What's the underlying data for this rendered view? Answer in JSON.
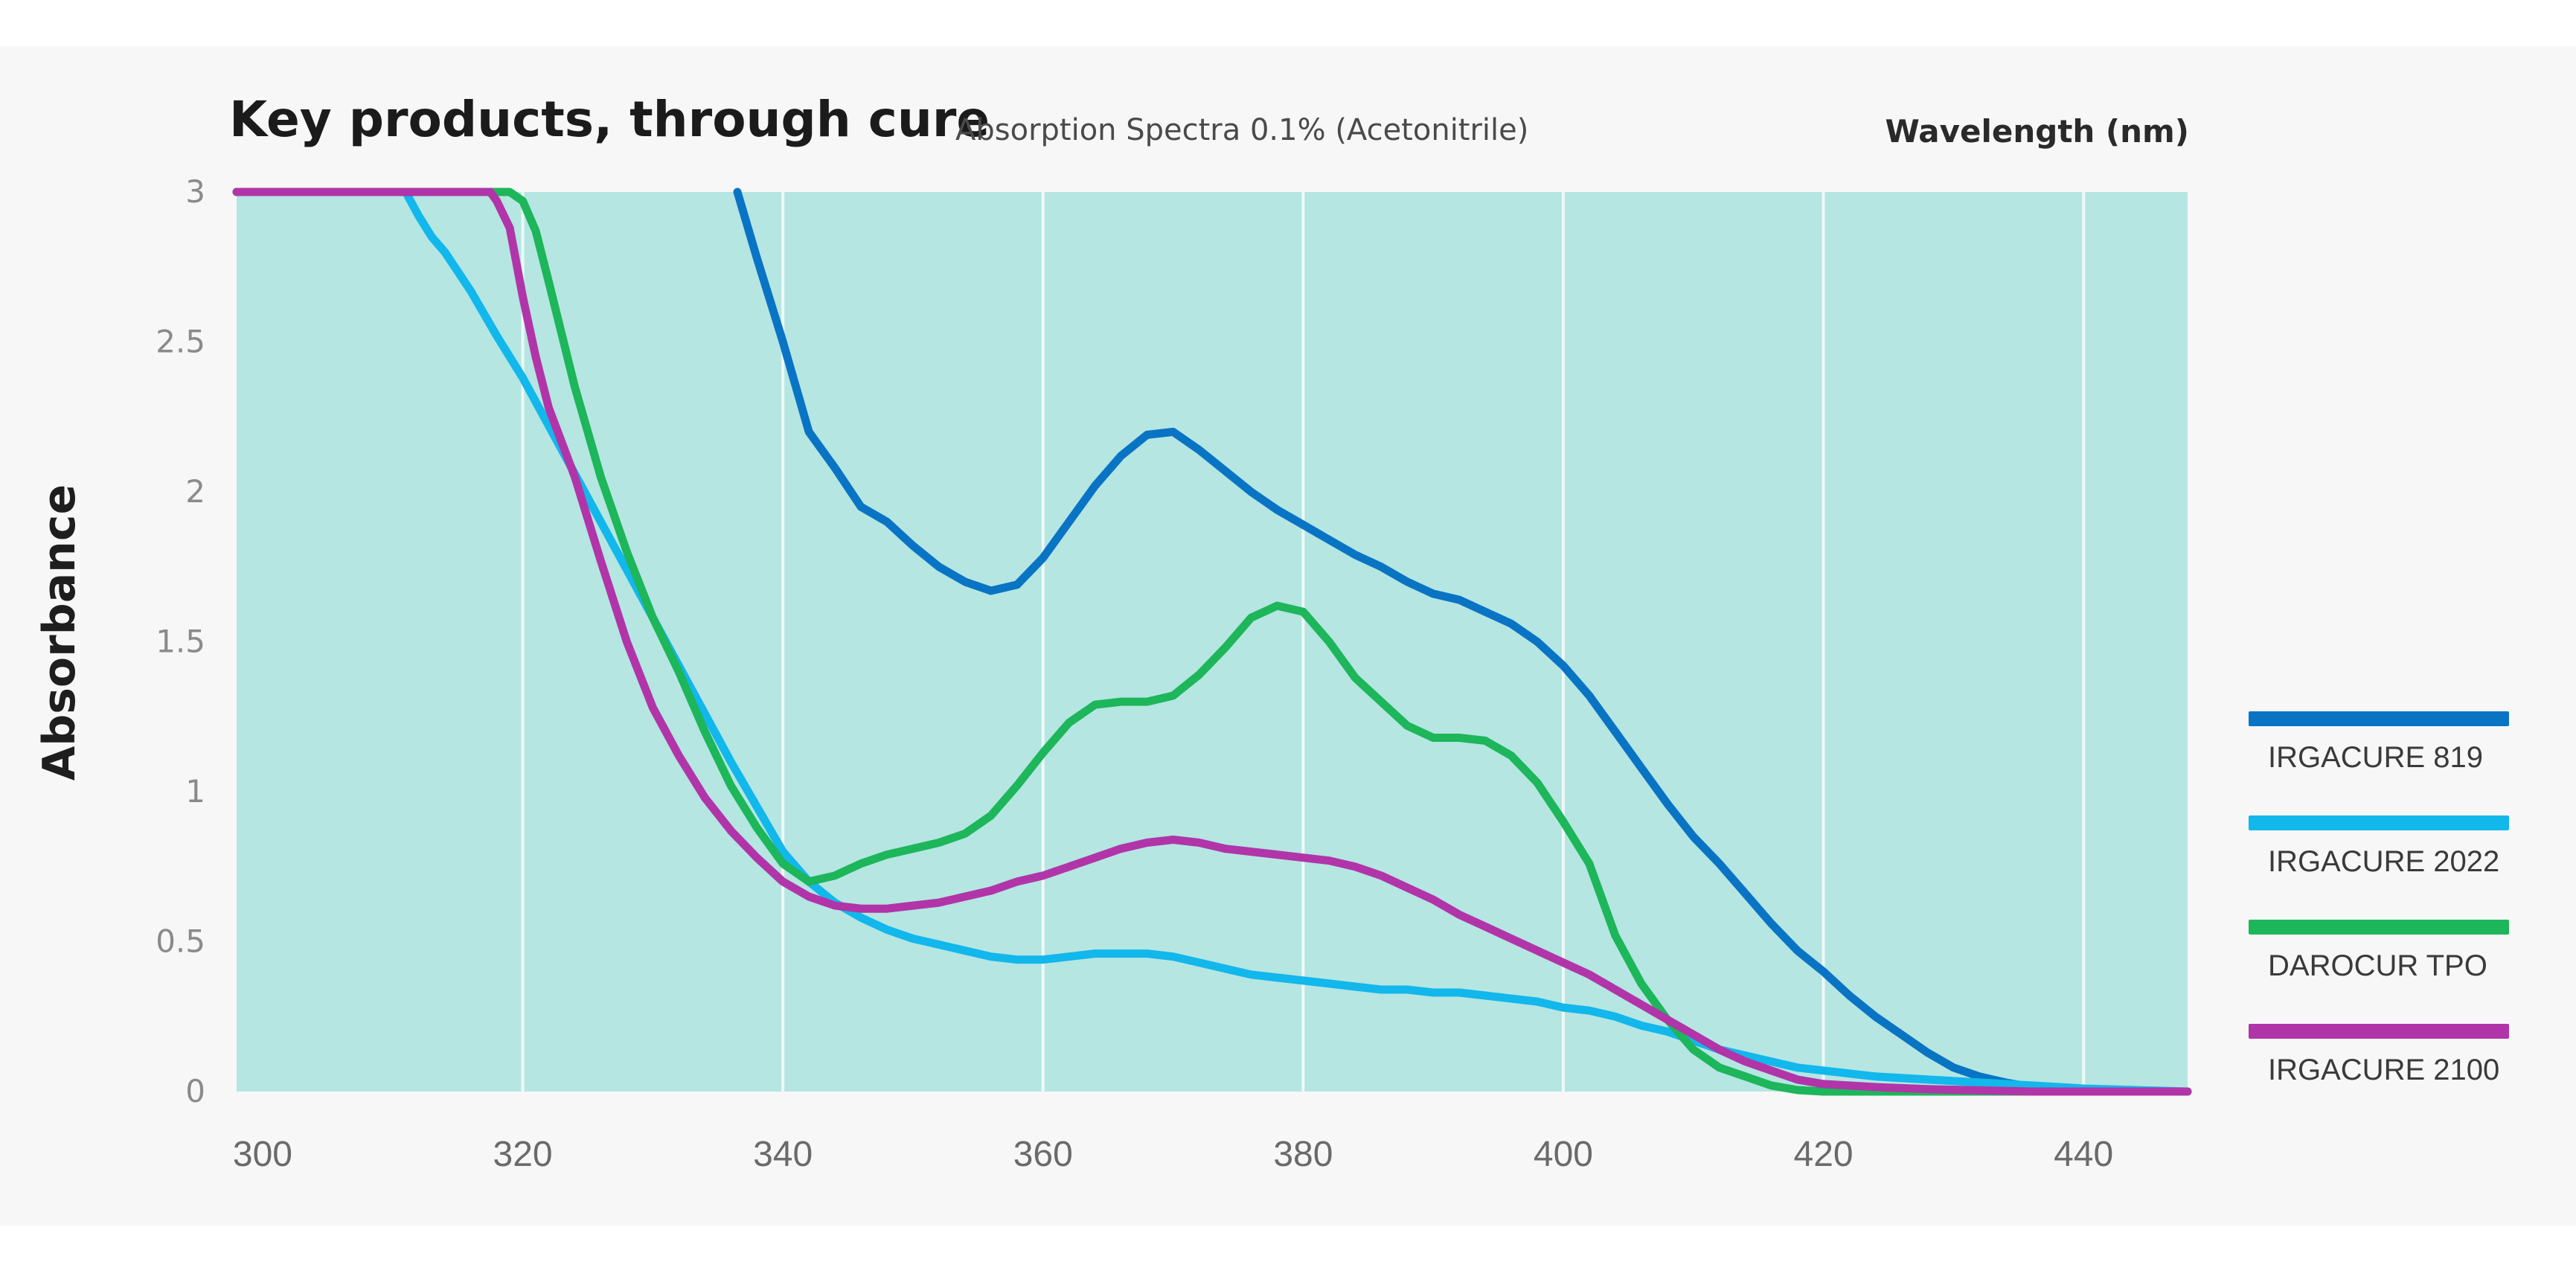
{
  "chart_data": {
    "type": "line",
    "title": "Key products, through cure",
    "subtitle": "Absorption Spectra 0.1% (Acetonitrile)",
    "xlabel": "Wavelength (nm)",
    "ylabel": "Absorbance",
    "xlim": [
      298,
      448
    ],
    "ylim": [
      0,
      3
    ],
    "x_ticks": [
      "300",
      "320",
      "340",
      "360",
      "380",
      "400",
      "420",
      "440"
    ],
    "x_tick_values": [
      300,
      320,
      340,
      360,
      380,
      400,
      420,
      440
    ],
    "y_ticks": [
      "0",
      "0.5",
      "1",
      "1.5",
      "2",
      "2.5",
      "3"
    ],
    "y_tick_values": [
      0,
      0.5,
      1,
      1.5,
      2,
      2.5,
      3
    ],
    "grid": "vertical",
    "background": "#b5e6e2",
    "legend_position": "right",
    "series": [
      {
        "name": "IRGACURE 819",
        "color": "#0a74c4",
        "points": [
          [
            336.5,
            3.0
          ],
          [
            338,
            2.78
          ],
          [
            340,
            2.5
          ],
          [
            342,
            2.2
          ],
          [
            344,
            2.08
          ],
          [
            346,
            1.95
          ],
          [
            348,
            1.9
          ],
          [
            350,
            1.82
          ],
          [
            352,
            1.75
          ],
          [
            354,
            1.7
          ],
          [
            356,
            1.67
          ],
          [
            358,
            1.69
          ],
          [
            360,
            1.78
          ],
          [
            362,
            1.9
          ],
          [
            364,
            2.02
          ],
          [
            366,
            2.12
          ],
          [
            368,
            2.19
          ],
          [
            370,
            2.2
          ],
          [
            372,
            2.14
          ],
          [
            374,
            2.07
          ],
          [
            376,
            2.0
          ],
          [
            378,
            1.94
          ],
          [
            380,
            1.89
          ],
          [
            382,
            1.84
          ],
          [
            384,
            1.79
          ],
          [
            386,
            1.75
          ],
          [
            388,
            1.7
          ],
          [
            390,
            1.66
          ],
          [
            392,
            1.64
          ],
          [
            394,
            1.6
          ],
          [
            396,
            1.56
          ],
          [
            398,
            1.5
          ],
          [
            400,
            1.42
          ],
          [
            402,
            1.32
          ],
          [
            404,
            1.2
          ],
          [
            406,
            1.08
          ],
          [
            408,
            0.96
          ],
          [
            410,
            0.85
          ],
          [
            412,
            0.76
          ],
          [
            414,
            0.66
          ],
          [
            416,
            0.56
          ],
          [
            418,
            0.47
          ],
          [
            420,
            0.4
          ],
          [
            422,
            0.32
          ],
          [
            424,
            0.25
          ],
          [
            426,
            0.19
          ],
          [
            428,
            0.13
          ],
          [
            430,
            0.08
          ],
          [
            432,
            0.05
          ],
          [
            434,
            0.03
          ],
          [
            436,
            0.015
          ],
          [
            438,
            0.005
          ],
          [
            440,
            0.0
          ],
          [
            448,
            0.0
          ]
        ]
      },
      {
        "name": "IRGACURE 2022",
        "color": "#12b7ec",
        "points": [
          [
            298,
            3.0
          ],
          [
            311,
            3.0
          ],
          [
            312,
            2.92
          ],
          [
            313,
            2.85
          ],
          [
            314,
            2.8
          ],
          [
            316,
            2.67
          ],
          [
            318,
            2.52
          ],
          [
            320,
            2.38
          ],
          [
            322,
            2.22
          ],
          [
            324,
            2.06
          ],
          [
            326,
            1.9
          ],
          [
            328,
            1.74
          ],
          [
            330,
            1.58
          ],
          [
            332,
            1.42
          ],
          [
            334,
            1.26
          ],
          [
            336,
            1.1
          ],
          [
            338,
            0.95
          ],
          [
            340,
            0.8
          ],
          [
            342,
            0.7
          ],
          [
            344,
            0.63
          ],
          [
            346,
            0.58
          ],
          [
            348,
            0.54
          ],
          [
            350,
            0.51
          ],
          [
            352,
            0.49
          ],
          [
            354,
            0.47
          ],
          [
            356,
            0.45
          ],
          [
            358,
            0.44
          ],
          [
            360,
            0.44
          ],
          [
            362,
            0.45
          ],
          [
            364,
            0.46
          ],
          [
            366,
            0.46
          ],
          [
            368,
            0.46
          ],
          [
            370,
            0.45
          ],
          [
            372,
            0.43
          ],
          [
            374,
            0.41
          ],
          [
            376,
            0.39
          ],
          [
            378,
            0.38
          ],
          [
            380,
            0.37
          ],
          [
            382,
            0.36
          ],
          [
            384,
            0.35
          ],
          [
            386,
            0.34
          ],
          [
            388,
            0.34
          ],
          [
            390,
            0.33
          ],
          [
            392,
            0.33
          ],
          [
            394,
            0.32
          ],
          [
            396,
            0.31
          ],
          [
            398,
            0.3
          ],
          [
            400,
            0.28
          ],
          [
            402,
            0.27
          ],
          [
            404,
            0.25
          ],
          [
            406,
            0.22
          ],
          [
            408,
            0.2
          ],
          [
            410,
            0.17
          ],
          [
            412,
            0.14
          ],
          [
            414,
            0.12
          ],
          [
            416,
            0.1
          ],
          [
            418,
            0.08
          ],
          [
            420,
            0.07
          ],
          [
            424,
            0.05
          ],
          [
            428,
            0.04
          ],
          [
            432,
            0.03
          ],
          [
            436,
            0.02
          ],
          [
            440,
            0.01
          ],
          [
            448,
            0.0
          ]
        ]
      },
      {
        "name": "DAROCUR TPO",
        "color": "#1db65a",
        "points": [
          [
            298,
            3.0
          ],
          [
            319,
            3.0
          ],
          [
            320,
            2.97
          ],
          [
            321,
            2.87
          ],
          [
            322,
            2.7
          ],
          [
            324,
            2.35
          ],
          [
            326,
            2.05
          ],
          [
            328,
            1.8
          ],
          [
            330,
            1.58
          ],
          [
            332,
            1.4
          ],
          [
            334,
            1.2
          ],
          [
            336,
            1.02
          ],
          [
            338,
            0.88
          ],
          [
            340,
            0.76
          ],
          [
            342,
            0.7
          ],
          [
            344,
            0.72
          ],
          [
            346,
            0.76
          ],
          [
            348,
            0.79
          ],
          [
            350,
            0.81
          ],
          [
            352,
            0.83
          ],
          [
            354,
            0.86
          ],
          [
            356,
            0.92
          ],
          [
            358,
            1.02
          ],
          [
            360,
            1.13
          ],
          [
            362,
            1.23
          ],
          [
            364,
            1.29
          ],
          [
            366,
            1.3
          ],
          [
            368,
            1.3
          ],
          [
            370,
            1.32
          ],
          [
            372,
            1.39
          ],
          [
            374,
            1.48
          ],
          [
            376,
            1.58
          ],
          [
            378,
            1.62
          ],
          [
            380,
            1.6
          ],
          [
            382,
            1.5
          ],
          [
            384,
            1.38
          ],
          [
            386,
            1.3
          ],
          [
            388,
            1.22
          ],
          [
            390,
            1.18
          ],
          [
            392,
            1.18
          ],
          [
            394,
            1.17
          ],
          [
            396,
            1.12
          ],
          [
            398,
            1.03
          ],
          [
            400,
            0.9
          ],
          [
            402,
            0.76
          ],
          [
            404,
            0.52
          ],
          [
            406,
            0.36
          ],
          [
            408,
            0.24
          ],
          [
            410,
            0.14
          ],
          [
            412,
            0.08
          ],
          [
            414,
            0.05
          ],
          [
            416,
            0.02
          ],
          [
            418,
            0.005
          ],
          [
            420,
            0.0
          ],
          [
            448,
            0.0
          ]
        ]
      },
      {
        "name": "IRGACURE 2100",
        "color": "#b135a8",
        "points": [
          [
            298,
            3.0
          ],
          [
            317.5,
            3.0
          ],
          [
            318,
            2.97
          ],
          [
            319,
            2.88
          ],
          [
            320,
            2.65
          ],
          [
            321,
            2.45
          ],
          [
            322,
            2.28
          ],
          [
            324,
            2.05
          ],
          [
            326,
            1.77
          ],
          [
            328,
            1.5
          ],
          [
            330,
            1.28
          ],
          [
            332,
            1.12
          ],
          [
            334,
            0.98
          ],
          [
            336,
            0.87
          ],
          [
            338,
            0.78
          ],
          [
            340,
            0.7
          ],
          [
            342,
            0.65
          ],
          [
            344,
            0.62
          ],
          [
            346,
            0.61
          ],
          [
            348,
            0.61
          ],
          [
            350,
            0.62
          ],
          [
            352,
            0.63
          ],
          [
            354,
            0.65
          ],
          [
            356,
            0.67
          ],
          [
            358,
            0.7
          ],
          [
            360,
            0.72
          ],
          [
            362,
            0.75
          ],
          [
            364,
            0.78
          ],
          [
            366,
            0.81
          ],
          [
            368,
            0.83
          ],
          [
            370,
            0.84
          ],
          [
            372,
            0.83
          ],
          [
            374,
            0.81
          ],
          [
            376,
            0.8
          ],
          [
            378,
            0.79
          ],
          [
            380,
            0.78
          ],
          [
            382,
            0.77
          ],
          [
            384,
            0.75
          ],
          [
            386,
            0.72
          ],
          [
            388,
            0.68
          ],
          [
            390,
            0.64
          ],
          [
            392,
            0.59
          ],
          [
            394,
            0.55
          ],
          [
            396,
            0.51
          ],
          [
            398,
            0.47
          ],
          [
            400,
            0.43
          ],
          [
            402,
            0.39
          ],
          [
            404,
            0.34
          ],
          [
            406,
            0.29
          ],
          [
            408,
            0.24
          ],
          [
            410,
            0.19
          ],
          [
            412,
            0.14
          ],
          [
            414,
            0.1
          ],
          [
            416,
            0.07
          ],
          [
            418,
            0.04
          ],
          [
            420,
            0.025
          ],
          [
            424,
            0.015
          ],
          [
            428,
            0.008
          ],
          [
            432,
            0.004
          ],
          [
            436,
            0.0
          ],
          [
            448,
            0.0
          ]
        ]
      }
    ]
  }
}
